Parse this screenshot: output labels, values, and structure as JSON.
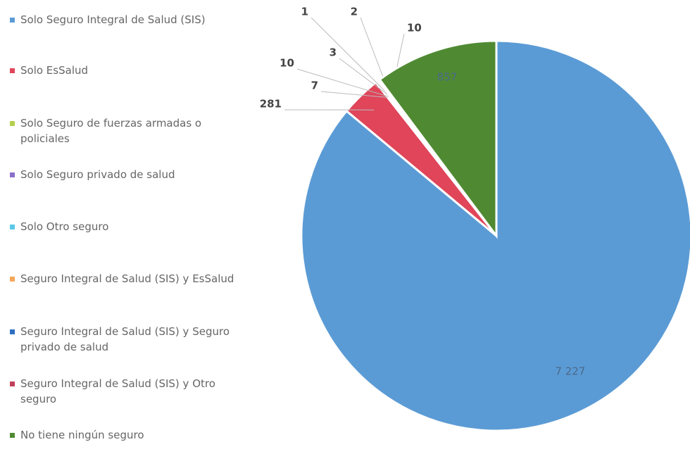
{
  "chart_data": {
    "type": "pie",
    "categories": [
      "Solo Seguro Integral de Salud (SIS)",
      "Solo EsSalud",
      "Solo Seguro de fuerzas armadas o policiales",
      "Solo Seguro privado de salud",
      "Solo Otro seguro",
      "Seguro Integral de Salud (SIS) y EsSalud",
      "Seguro Integral de Salud (SIS) y Seguro privado de salud",
      "Seguro Integral de Salud (SIS) y Otro seguro",
      "No tiene ningún seguro"
    ],
    "values": [
      7227,
      281,
      7,
      10,
      3,
      1,
      2,
      10,
      857
    ],
    "value_labels": [
      "7 227",
      "281",
      "7",
      "10",
      "3",
      "1",
      "2",
      "10",
      "857"
    ],
    "colors": [
      "#5b9bd5",
      "#e0455a",
      "#b5cf4e",
      "#8a6fc9",
      "#5bc8e8",
      "#f4a85a",
      "#2e6fc0",
      "#c0405a",
      "#4f8a32"
    ],
    "legend": "left"
  }
}
